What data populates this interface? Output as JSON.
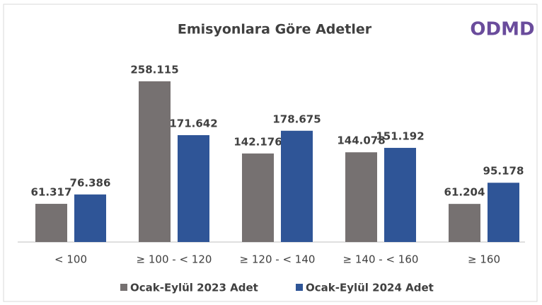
{
  "logo": "ODMD",
  "chart_data": {
    "type": "bar",
    "title": "Emisyonlara Göre Adetler",
    "categories": [
      "< 100",
      "≥ 100 - < 120",
      "≥ 120 - < 140",
      "≥ 140 - < 160",
      "≥  160"
    ],
    "series": [
      {
        "name": "Ocak-Eylül 2023 Adet",
        "color": "#767171",
        "values": [
          61317,
          258115,
          142176,
          144078,
          61204
        ],
        "value_labels": [
          "61.317",
          "258.115",
          "142.176",
          "144.078",
          "61.204"
        ]
      },
      {
        "name": "Ocak-Eylül 2024 Adet",
        "color": "#2f5597",
        "values": [
          76386,
          171642,
          178675,
          151192,
          95178
        ],
        "value_labels": [
          "76.386",
          "171.642",
          "178.675",
          "151.192",
          "95.178"
        ]
      }
    ],
    "ylim": [
      0,
      300000
    ],
    "legend": "bottom"
  }
}
